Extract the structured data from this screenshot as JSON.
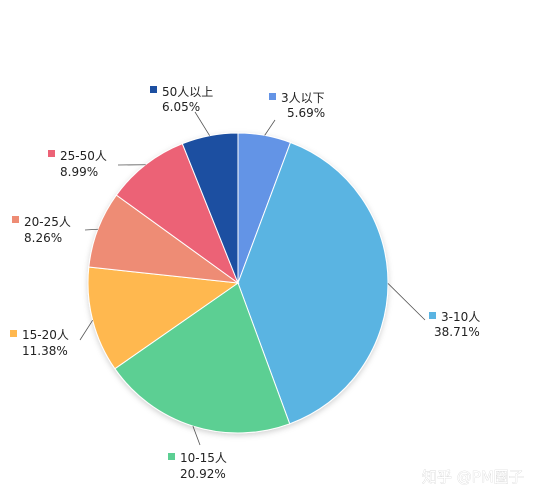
{
  "chart_data": {
    "type": "pie",
    "title": "",
    "categories": [
      "3-10人",
      "10-15人",
      "15-20人",
      "20-25人",
      "25-50人",
      "50人以上",
      "3人以下"
    ],
    "values_pct": [
      38.71,
      20.92,
      11.38,
      8.26,
      8.99,
      6.05,
      5.69
    ],
    "value_labels": [
      "38.71%",
      "20.92%",
      "11.38%",
      "8.26%",
      "8.99%",
      "6.05%",
      "5.69%"
    ],
    "colors": [
      "#5ab4e2",
      "#5ccf93",
      "#ffb84f",
      "#ee8c74",
      "#ec6276",
      "#1d4fa1",
      "#6494e6"
    ],
    "order": "clockwise from 12 o'clock starting with 3人以下",
    "legend": "none; each slice labeled externally with a colored square marker and leader line"
  },
  "watermark": "知乎 @PM圈子"
}
